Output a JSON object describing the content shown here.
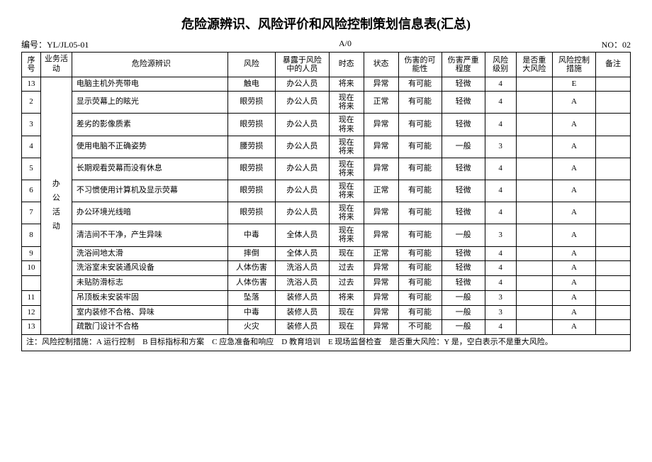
{
  "title": "危险源辨识、风险评价和风险控制策划信息表(汇总)",
  "meta": {
    "left": "编号：YL/JL05-01",
    "center": "A/0",
    "right": "NO：02"
  },
  "headers": {
    "seq": "序\n号",
    "activity": "业务活动",
    "hazard": "危险源辨识",
    "risk": "风险",
    "exposed": "暴露于风险\n中的人员",
    "tense": "时态",
    "state": "状态",
    "possibility": "伤害的可\n能性",
    "severity": "伤害严重\n程度",
    "level": "风险\n级别",
    "major": "是否重\n大风险",
    "control": "风险控制\n措施",
    "note": "备注"
  },
  "activity": "办\n公\n活\n动",
  "rows": [
    {
      "seq": "13",
      "hazard": "电脑主机外壳带电",
      "risk": "触电",
      "person": "办公人员",
      "tense": "将来",
      "state": "异常",
      "poss": "有可能",
      "sev": "轻微",
      "level": "4",
      "major": "",
      "ctrl": "E",
      "note": ""
    },
    {
      "seq": "2",
      "hazard": "显示荧幕上的眩光",
      "risk": "眼劳损",
      "person": "办公人员",
      "tense": "现在\n将来",
      "state": "正常",
      "poss": "有可能",
      "sev": "轻微",
      "level": "4",
      "major": "",
      "ctrl": "A",
      "note": ""
    },
    {
      "seq": "3",
      "hazard": "差劣的影像质素",
      "risk": "眼劳损",
      "person": "办公人员",
      "tense": "现在\n将来",
      "state": "异常",
      "poss": "有可能",
      "sev": "轻微",
      "level": "4",
      "major": "",
      "ctrl": "A",
      "note": ""
    },
    {
      "seq": "4",
      "hazard": "使用电脑不正确姿势",
      "risk": "腰劳损",
      "person": "办公人员",
      "tense": "现在\n将来",
      "state": "异常",
      "poss": "有可能",
      "sev": "一般",
      "level": "3",
      "major": "",
      "ctrl": "A",
      "note": ""
    },
    {
      "seq": "5",
      "hazard": "长期观看荧幕而没有休息",
      "risk": "眼劳损",
      "person": "办公人员",
      "tense": "现在\n将来",
      "state": "异常",
      "poss": "有可能",
      "sev": "轻微",
      "level": "4",
      "major": "",
      "ctrl": "A",
      "note": ""
    },
    {
      "seq": "6",
      "hazard": "不习惯使用计算机及显示荧幕",
      "risk": "眼劳损",
      "person": "办公人员",
      "tense": "现在\n将来",
      "state": "正常",
      "poss": "有可能",
      "sev": "轻微",
      "level": "4",
      "major": "",
      "ctrl": "A",
      "note": ""
    },
    {
      "seq": "7",
      "hazard": "办公环境光线暗",
      "risk": "眼劳损",
      "person": "办公人员",
      "tense": "现在\n将来",
      "state": "异常",
      "poss": "有可能",
      "sev": "轻微",
      "level": "4",
      "major": "",
      "ctrl": "A",
      "note": ""
    },
    {
      "seq": "8",
      "hazard": "清洁间不干净，产生异味",
      "risk": "中毒",
      "person": "全体人员",
      "tense": "现在\n将来",
      "state": "异常",
      "poss": "有可能",
      "sev": "一般",
      "level": "3",
      "major": "",
      "ctrl": "A",
      "note": ""
    },
    {
      "seq": "9",
      "hazard": "洗浴间地太滑",
      "risk": "摔倒",
      "person": "全体人员",
      "tense": "现在",
      "state": "正常",
      "poss": "有可能",
      "sev": "轻微",
      "level": "4",
      "major": "",
      "ctrl": "A",
      "note": ""
    },
    {
      "seq": "10",
      "hazard": "洗浴室未安装通风设备",
      "risk": "人体伤害",
      "person": "洗浴人员",
      "tense": "过去",
      "state": "异常",
      "poss": "有可能",
      "sev": "轻微",
      "level": "4",
      "major": "",
      "ctrl": "A",
      "note": ""
    },
    {
      "seq": "",
      "hazard": "未贴防滑标志",
      "risk": "人体伤害",
      "person": "洗浴人员",
      "tense": "过去",
      "state": "异常",
      "poss": "有可能",
      "sev": "轻微",
      "level": "4",
      "major": "",
      "ctrl": "A",
      "note": ""
    },
    {
      "seq": "11",
      "hazard": "吊顶板未安装牢固",
      "risk": "坠落",
      "person": "装修人员",
      "tense": "将来",
      "state": "异常",
      "poss": "有可能",
      "sev": "一般",
      "level": "3",
      "major": "",
      "ctrl": "A",
      "note": ""
    },
    {
      "seq": "12",
      "hazard": "室内装修不合格、异味",
      "risk": "中毒",
      "person": "装修人员",
      "tense": "现在",
      "state": "异常",
      "poss": "有可能",
      "sev": "一般",
      "level": "3",
      "major": "",
      "ctrl": "A",
      "note": ""
    },
    {
      "seq": "13",
      "hazard": "疏散门设计不合格",
      "risk": "火灾",
      "person": "装修人员",
      "tense": "现在",
      "state": "异常",
      "poss": "不可能",
      "sev": "一般",
      "level": "4",
      "major": "",
      "ctrl": "A",
      "note": ""
    }
  ],
  "footnote": "注：风险控制措施：A 运行控制　B 目标指标和方案　C 应急准备和响应　D 教育培训　E 现场监督检查　是否重大风险：Y 是，空白表示不是重大风险。"
}
